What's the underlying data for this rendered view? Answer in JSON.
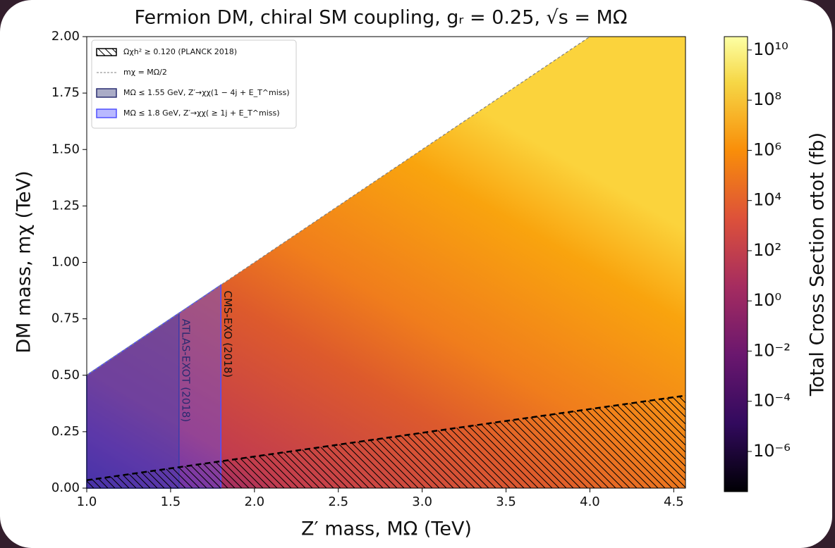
{
  "chart_data": {
    "type": "region",
    "title": "Fermion DM, chiral SM coupling, gᵣ = 0.25, √s = MΩ",
    "xlabel": "Z′ mass, MΩ (TeV)",
    "ylabel": "DM mass, mχ (TeV)",
    "xlim": [
      1.0,
      4.57
    ],
    "ylim": [
      0,
      2.0
    ],
    "xticks": [
      {
        "value": 1.0,
        "label": "1.0"
      },
      1.5,
      {
        "value": 2.0,
        "label": "2.0"
      },
      2.5,
      {
        "value": 3.0,
        "label": "3.0"
      },
      3.5,
      {
        "value": 4.0,
        "label": "4.0"
      },
      4.5
    ],
    "yticks": [
      {
        "value": 0,
        "label": "0.00"
      },
      {
        "value": 0.25,
        "label": "0.25"
      },
      {
        "value": 0.5,
        "label": "0.50"
      },
      {
        "value": 0.75,
        "label": "0.75"
      },
      {
        "value": 1.0,
        "label": "1.00"
      },
      {
        "value": 1.25,
        "label": "1.25"
      },
      {
        "value": 1.5,
        "label": "1.50"
      },
      {
        "value": 1.75,
        "label": "1.75"
      },
      {
        "value": 2.0,
        "label": "2.00"
      }
    ],
    "legend": "upper left",
    "relic": {
      "name": "Ωχh² ≥ 0.120 (PLANCK 2018)",
      "x": [
        1.0,
        4.57
      ],
      "y": [
        0.035,
        0.41
      ],
      "color": "#000000"
    },
    "threshold": {
      "name": "mχ = MΩ/2",
      "x": [
        1.0,
        4.0
      ],
      "y": [
        0.5,
        2.0
      ],
      "color": "#808080"
    },
    "exclusions": [
      {
        "name": "MΩ ≤ 1.55 GeV, Z′→χχ(1 − 4j + E_T^miss)",
        "xmax": 1.55,
        "color": "#2b2f72",
        "label": "ATLAS-EXOT (2018)"
      },
      {
        "name": "MΩ ≤ 1.8 GeV, Z′→χχ( ≥ 1j + E_T^miss)",
        "xmax": 1.8,
        "color": "#5050ff",
        "label": "CMS-EXO (2018)"
      }
    ],
    "colorbar": {
      "label": "Total Cross Section σtot (fb)",
      "log": true,
      "lim": [
        2.5e-08,
        34000000000.0
      ],
      "ticks": [
        {
          "value": 1e-06,
          "label": "10⁻⁶"
        },
        {
          "value": 0.0001,
          "label": "10⁻⁴"
        },
        {
          "value": 0.01,
          "label": "10⁻²"
        },
        {
          "value": 1,
          "label": "10⁰"
        },
        {
          "value": 100,
          "label": "10²"
        },
        {
          "value": 10000,
          "label": "10⁴"
        },
        {
          "value": 1000000,
          "label": "10⁶"
        },
        {
          "value": 100000000,
          "label": "10⁸"
        },
        {
          "value": 10000000000,
          "label": "10¹⁰"
        }
      ]
    }
  }
}
